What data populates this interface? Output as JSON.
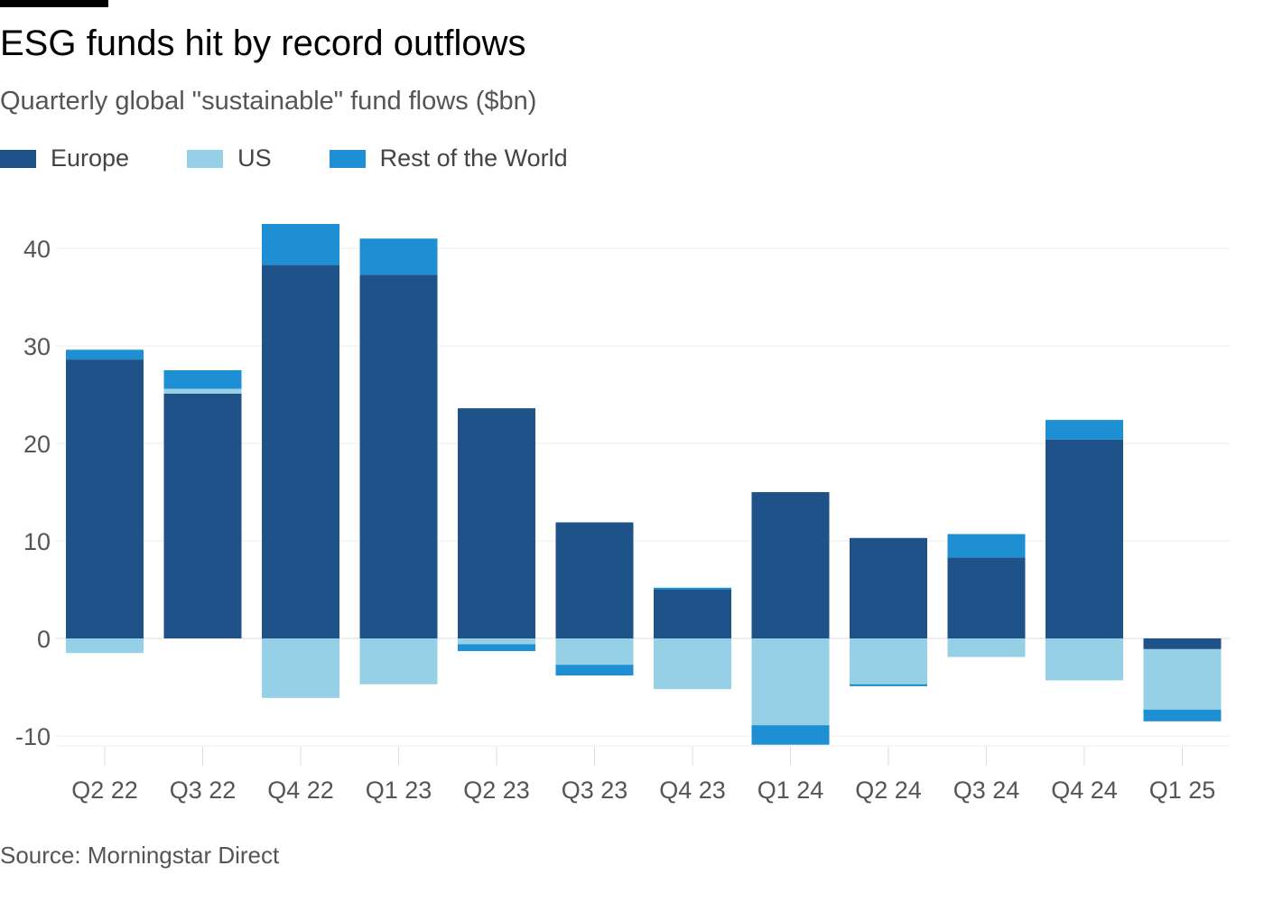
{
  "title": "ESG funds hit by record outflows",
  "subtitle": "Quarterly global \"sustainable\" fund flows ($bn)",
  "source": "Source: Morningstar Direct",
  "chart_data": {
    "type": "bar",
    "stacked": true,
    "categories": [
      "Q2 22",
      "Q3 22",
      "Q4 22",
      "Q1 23",
      "Q2 23",
      "Q3 23",
      "Q4 23",
      "Q1 24",
      "Q2 24",
      "Q3 24",
      "Q4 24",
      "Q1 25"
    ],
    "series": [
      {
        "name": "Europe",
        "color": "#1f5289",
        "values": [
          28.6,
          25.1,
          38.3,
          37.3,
          23.6,
          11.9,
          5.0,
          15.0,
          10.3,
          8.3,
          20.4,
          -1.1
        ]
      },
      {
        "name": "US",
        "color": "#96d0e6",
        "values": [
          -1.5,
          0.5,
          -6.1,
          -4.7,
          -0.6,
          -2.7,
          -5.2,
          -8.9,
          -4.7,
          -1.9,
          -4.3,
          -6.2
        ]
      },
      {
        "name": "Rest of the World",
        "color": "#1e8fd2",
        "values": [
          1.0,
          1.9,
          4.2,
          3.7,
          -0.7,
          -1.1,
          0.2,
          -2.0,
          -0.2,
          2.4,
          2.0,
          -1.2
        ]
      }
    ],
    "yticks": [
      -10,
      0,
      10,
      20,
      30,
      40
    ],
    "ylim": [
      -10.9,
      45
    ],
    "grid": true,
    "legend": "top-left",
    "xlabel": "",
    "ylabel": ""
  }
}
